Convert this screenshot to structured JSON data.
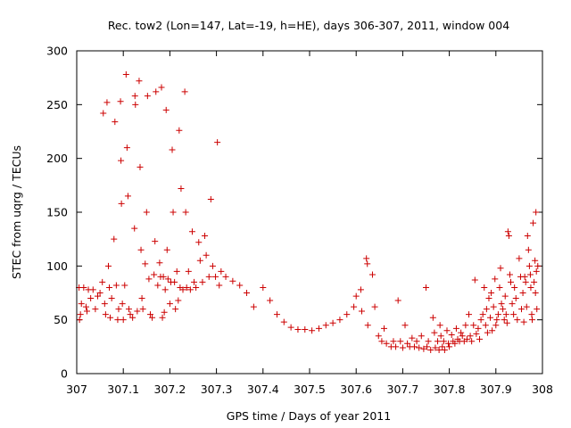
{
  "chart_data": {
    "type": "scatter",
    "title": "Rec. tow2 (Lon=147, Lat=-19, h=HE), days 306-307, 2011, window 004",
    "xlabel": "GPS time / Days of year 2011",
    "ylabel": "STEC from uqrg / TECUs",
    "xlim": [
      307,
      308
    ],
    "ylim": [
      0,
      300
    ],
    "x_ticks": [
      307,
      307.1,
      307.2,
      307.3,
      307.4,
      307.5,
      307.6,
      307.7,
      307.8,
      307.9,
      308
    ],
    "x_tick_labels": [
      "307",
      "307.1",
      "307.2",
      "307.3",
      "307.4",
      "307.5",
      "307.6",
      "307.7",
      "307.8",
      "307.9",
      "308"
    ],
    "y_ticks": [
      0,
      50,
      100,
      150,
      200,
      250,
      300
    ],
    "y_tick_labels": [
      "0",
      "50",
      "100",
      "150",
      "200",
      "250",
      "300"
    ],
    "grid": false,
    "legend": "none",
    "marker": "plus",
    "series": [
      {
        "name": "STEC",
        "color": "#cc0000",
        "points": [
          [
            307.005,
            80
          ],
          [
            307.006,
            50
          ],
          [
            307.008,
            55
          ],
          [
            307.01,
            65
          ],
          [
            307.015,
            80
          ],
          [
            307.02,
            62
          ],
          [
            307.022,
            58
          ],
          [
            307.025,
            78
          ],
          [
            307.03,
            70
          ],
          [
            307.035,
            78
          ],
          [
            307.04,
            60
          ],
          [
            307.045,
            72
          ],
          [
            307.05,
            75
          ],
          [
            307.055,
            85
          ],
          [
            307.057,
            242
          ],
          [
            307.06,
            65
          ],
          [
            307.062,
            55
          ],
          [
            307.065,
            252
          ],
          [
            307.068,
            100
          ],
          [
            307.07,
            80
          ],
          [
            307.072,
            52
          ],
          [
            307.075,
            70
          ],
          [
            307.08,
            125
          ],
          [
            307.082,
            234
          ],
          [
            307.085,
            82
          ],
          [
            307.088,
            50
          ],
          [
            307.09,
            60
          ],
          [
            307.094,
            253
          ],
          [
            307.095,
            198
          ],
          [
            307.096,
            158
          ],
          [
            307.098,
            65
          ],
          [
            307.1,
            50
          ],
          [
            307.103,
            82
          ],
          [
            307.106,
            278
          ],
          [
            307.108,
            210
          ],
          [
            307.11,
            165
          ],
          [
            307.112,
            60
          ],
          [
            307.115,
            55
          ],
          [
            307.12,
            52
          ],
          [
            307.124,
            135
          ],
          [
            307.125,
            258
          ],
          [
            307.126,
            250
          ],
          [
            307.13,
            58
          ],
          [
            307.134,
            272
          ],
          [
            307.136,
            192
          ],
          [
            307.138,
            115
          ],
          [
            307.14,
            70
          ],
          [
            307.142,
            60
          ],
          [
            307.147,
            102
          ],
          [
            307.15,
            150
          ],
          [
            307.152,
            258
          ],
          [
            307.155,
            88
          ],
          [
            307.158,
            55
          ],
          [
            307.162,
            52
          ],
          [
            307.166,
            92
          ],
          [
            307.168,
            123
          ],
          [
            307.17,
            262
          ],
          [
            307.174,
            82
          ],
          [
            307.178,
            103
          ],
          [
            307.18,
            90
          ],
          [
            307.182,
            266
          ],
          [
            307.184,
            52
          ],
          [
            307.186,
            90
          ],
          [
            307.188,
            57
          ],
          [
            307.19,
            78
          ],
          [
            307.192,
            245
          ],
          [
            307.194,
            115
          ],
          [
            307.196,
            88
          ],
          [
            307.2,
            65
          ],
          [
            307.202,
            85
          ],
          [
            307.205,
            208
          ],
          [
            307.207,
            150
          ],
          [
            307.21,
            85
          ],
          [
            307.212,
            60
          ],
          [
            307.215,
            95
          ],
          [
            307.218,
            68
          ],
          [
            307.22,
            226
          ],
          [
            307.222,
            80
          ],
          [
            307.224,
            172
          ],
          [
            307.228,
            78
          ],
          [
            307.232,
            262
          ],
          [
            307.234,
            150
          ],
          [
            307.236,
            80
          ],
          [
            307.24,
            95
          ],
          [
            307.244,
            78
          ],
          [
            307.248,
            132
          ],
          [
            307.252,
            85
          ],
          [
            307.256,
            80
          ],
          [
            307.262,
            122
          ],
          [
            307.265,
            105
          ],
          [
            307.27,
            85
          ],
          [
            307.275,
            128
          ],
          [
            307.278,
            110
          ],
          [
            307.284,
            90
          ],
          [
            307.288,
            162
          ],
          [
            307.292,
            100
          ],
          [
            307.298,
            90
          ],
          [
            307.302,
            215
          ],
          [
            307.306,
            82
          ],
          [
            307.31,
            95
          ],
          [
            307.32,
            90
          ],
          [
            307.335,
            86
          ],
          [
            307.35,
            82
          ],
          [
            307.365,
            75
          ],
          [
            307.38,
            62
          ],
          [
            307.4,
            80
          ],
          [
            307.415,
            68
          ],
          [
            307.43,
            55
          ],
          [
            307.445,
            48
          ],
          [
            307.46,
            43
          ],
          [
            307.475,
            41
          ],
          [
            307.49,
            41
          ],
          [
            307.505,
            40
          ],
          [
            307.52,
            42
          ],
          [
            307.535,
            45
          ],
          [
            307.55,
            47
          ],
          [
            307.565,
            50
          ],
          [
            307.58,
            55
          ],
          [
            307.595,
            62
          ],
          [
            307.6,
            72
          ],
          [
            307.61,
            78
          ],
          [
            307.612,
            58
          ],
          [
            307.622,
            107
          ],
          [
            307.624,
            102
          ],
          [
            307.625,
            45
          ],
          [
            307.635,
            92
          ],
          [
            307.64,
            62
          ],
          [
            307.648,
            35
          ],
          [
            307.655,
            30
          ],
          [
            307.66,
            42
          ],
          [
            307.665,
            28
          ],
          [
            307.675,
            25
          ],
          [
            307.68,
            30
          ],
          [
            307.685,
            25
          ],
          [
            307.69,
            68
          ],
          [
            307.695,
            30
          ],
          [
            307.7,
            24
          ],
          [
            307.705,
            45
          ],
          [
            307.71,
            28
          ],
          [
            307.715,
            25
          ],
          [
            307.72,
            33
          ],
          [
            307.725,
            25
          ],
          [
            307.73,
            30
          ],
          [
            307.735,
            24
          ],
          [
            307.74,
            35
          ],
          [
            307.745,
            23
          ],
          [
            307.75,
            80
          ],
          [
            307.752,
            25
          ],
          [
            307.755,
            30
          ],
          [
            307.76,
            22
          ],
          [
            307.765,
            52
          ],
          [
            307.768,
            38
          ],
          [
            307.77,
            24
          ],
          [
            307.775,
            30
          ],
          [
            307.778,
            22
          ],
          [
            307.78,
            45
          ],
          [
            307.782,
            35
          ],
          [
            307.785,
            25
          ],
          [
            307.788,
            30
          ],
          [
            307.79,
            22
          ],
          [
            307.795,
            40
          ],
          [
            307.798,
            28
          ],
          [
            307.8,
            25
          ],
          [
            307.805,
            36
          ],
          [
            307.808,
            30
          ],
          [
            307.812,
            28
          ],
          [
            307.815,
            42
          ],
          [
            307.818,
            32
          ],
          [
            307.822,
            30
          ],
          [
            307.825,
            38
          ],
          [
            307.828,
            35
          ],
          [
            307.832,
            30
          ],
          [
            307.835,
            45
          ],
          [
            307.838,
            32
          ],
          [
            307.842,
            55
          ],
          [
            307.845,
            35
          ],
          [
            307.848,
            30
          ],
          [
            307.852,
            45
          ],
          [
            307.855,
            87
          ],
          [
            307.858,
            37
          ],
          [
            307.862,
            42
          ],
          [
            307.865,
            32
          ],
          [
            307.868,
            50
          ],
          [
            307.872,
            55
          ],
          [
            307.875,
            80
          ],
          [
            307.878,
            45
          ],
          [
            307.88,
            60
          ],
          [
            307.882,
            38
          ],
          [
            307.885,
            70
          ],
          [
            307.888,
            52
          ],
          [
            307.89,
            75
          ],
          [
            307.892,
            40
          ],
          [
            307.895,
            62
          ],
          [
            307.898,
            88
          ],
          [
            307.9,
            45
          ],
          [
            307.902,
            50
          ],
          [
            307.905,
            55
          ],
          [
            307.908,
            80
          ],
          [
            307.91,
            98
          ],
          [
            307.912,
            65
          ],
          [
            307.915,
            60
          ],
          [
            307.918,
            50
          ],
          [
            307.92,
            72
          ],
          [
            307.922,
            55
          ],
          [
            307.924,
            47
          ],
          [
            307.926,
            132
          ],
          [
            307.928,
            128
          ],
          [
            307.93,
            92
          ],
          [
            307.932,
            85
          ],
          [
            307.935,
            65
          ],
          [
            307.938,
            55
          ],
          [
            307.94,
            80
          ],
          [
            307.943,
            70
          ],
          [
            307.946,
            50
          ],
          [
            307.95,
            107
          ],
          [
            307.953,
            90
          ],
          [
            307.955,
            60
          ],
          [
            307.958,
            75
          ],
          [
            307.96,
            48
          ],
          [
            307.962,
            90
          ],
          [
            307.964,
            85
          ],
          [
            307.966,
            62
          ],
          [
            307.968,
            128
          ],
          [
            307.97,
            115
          ],
          [
            307.972,
            100
          ],
          [
            307.974,
            92
          ],
          [
            307.975,
            80
          ],
          [
            307.977,
            55
          ],
          [
            307.978,
            50
          ],
          [
            307.98,
            140
          ],
          [
            307.982,
            85
          ],
          [
            307.984,
            105
          ],
          [
            307.985,
            75
          ],
          [
            307.986,
            150
          ],
          [
            307.987,
            95
          ],
          [
            307.988,
            60
          ],
          [
            307.99,
            100
          ]
        ]
      }
    ]
  }
}
